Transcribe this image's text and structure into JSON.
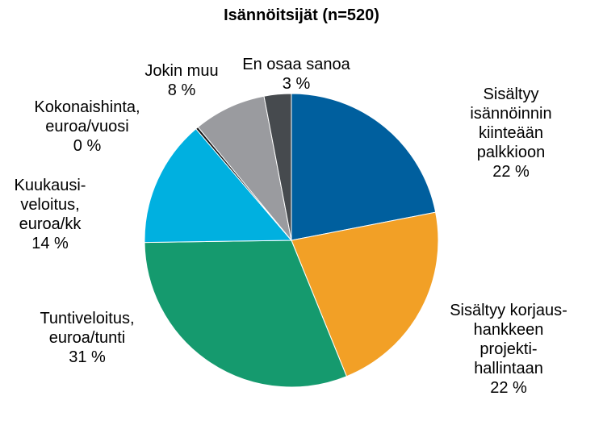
{
  "chart_data": {
    "type": "pie",
    "title": "Isännöitsijät (n=520)",
    "slices": [
      {
        "label_lines": [
          "Sisältyy",
          "isännöinnin",
          "kiinteään",
          "palkkioon"
        ],
        "value": 22,
        "value_label": "22 %",
        "color": "#005f9e"
      },
      {
        "label_lines": [
          "Sisältyy korjaus-",
          "hankkeen",
          "projekti-",
          "hallintaan"
        ],
        "value": 22,
        "value_label": "22 %",
        "color": "#f2a026"
      },
      {
        "label_lines": [
          "Tuntiveloitus,",
          "euroa/tunti"
        ],
        "value": 31,
        "value_label": "31 %",
        "color": "#159a6e"
      },
      {
        "label_lines": [
          "Kuukausi-",
          "veloitus,",
          "euroa/kk"
        ],
        "value": 14,
        "value_label": "14 %",
        "color": "#00b0e0"
      },
      {
        "label_lines": [
          "Kokonaishinta,",
          "euroa/vuosi"
        ],
        "value": 0.3,
        "value_label": "0 %",
        "color": "#1a1a1a"
      },
      {
        "label_lines": [
          "Jokin muu"
        ],
        "value": 8,
        "value_label": "8 %",
        "color": "#9a9b9f"
      },
      {
        "label_lines": [
          "En osaa sanoa"
        ],
        "value": 3,
        "value_label": "3 %",
        "color": "#464a4e"
      }
    ]
  }
}
